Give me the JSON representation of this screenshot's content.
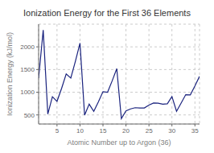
{
  "chart_data": {
    "type": "line",
    "title": "Ionization Energy for the First 36 Elements",
    "xlabel": "Atomic Number up to Argon (36)",
    "ylabel": "Ionization Energy (kJ/mol)",
    "x": [
      1,
      2,
      3,
      4,
      5,
      6,
      7,
      8,
      9,
      10,
      11,
      12,
      13,
      14,
      15,
      16,
      17,
      18,
      19,
      20,
      21,
      22,
      23,
      24,
      25,
      26,
      27,
      28,
      29,
      30,
      31,
      32,
      33,
      34,
      35,
      36
    ],
    "values": [
      1312,
      2372,
      520,
      900,
      800,
      1086,
      1402,
      1314,
      1681,
      2081,
      496,
      738,
      578,
      786,
      1012,
      1000,
      1251,
      1521,
      419,
      590,
      633,
      659,
      651,
      653,
      717,
      762,
      760,
      737,
      746,
      906,
      579,
      762,
      947,
      941,
      1140,
      1351
    ],
    "color": "#1a237e",
    "xlim": [
      1,
      36
    ],
    "ylim": [
      300,
      2500
    ],
    "xticks": [
      5,
      10,
      15,
      20,
      25,
      30,
      35
    ],
    "yticks": [
      500,
      1000,
      1500,
      2000
    ],
    "grid": true
  }
}
